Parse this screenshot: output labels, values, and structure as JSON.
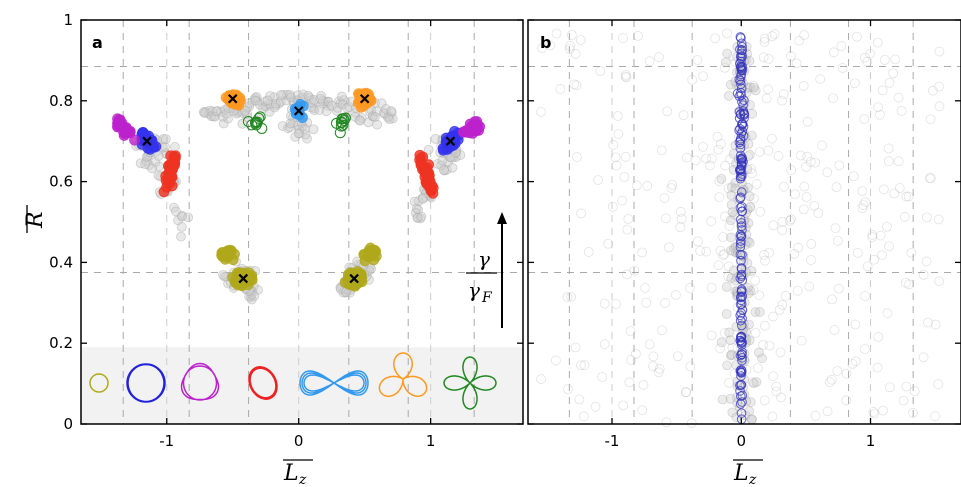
{
  "chart_data": [
    {
      "panel": "a",
      "type": "scatter",
      "ylabel": "R",
      "xlabel": "L",
      "xlabel_sub": "z",
      "xlim": [
        -1.65,
        1.7
      ],
      "ylim": [
        0,
        1
      ],
      "xticks": [
        -1,
        0,
        1
      ],
      "xtick_labels": [
        "-1",
        "0",
        "1"
      ],
      "yticks": [
        0,
        0.2,
        0.4,
        0.6,
        0.8,
        1
      ],
      "ytick_labels": [
        "0",
        "0.2",
        "0.4",
        "0.6",
        "0.8",
        "1"
      ],
      "grid_x": [
        -1.33,
        -0.83,
        -0.38,
        0.38,
        0.83,
        1.33
      ],
      "grid_y": [
        0.375,
        0.885
      ],
      "inset_band_ymax": 0.19,
      "arrow_label": {
        "numerator": "γ",
        "denominator": "γ",
        "denominator_sub": "F"
      },
      "clusters": [
        {
          "color": "#b0a81c",
          "center": [
            -0.42,
            0.36
          ],
          "n": 70
        },
        {
          "color": "#b0a81c",
          "center": [
            0.42,
            0.36
          ],
          "n": 70
        },
        {
          "color": "#b0a81c",
          "center": [
            -0.55,
            0.42
          ],
          "n": 20
        },
        {
          "color": "#b0a81c",
          "center": [
            0.55,
            0.42
          ],
          "n": 20
        },
        {
          "color": "#3333ee",
          "center": [
            -1.15,
            0.7
          ],
          "n": 35
        },
        {
          "color": "#3333ee",
          "center": [
            1.15,
            0.7
          ],
          "n": 35
        },
        {
          "color": "#bb22cc",
          "center": [
            -1.32,
            0.73
          ],
          "n": 25
        },
        {
          "color": "#bb22cc",
          "center": [
            1.32,
            0.73
          ],
          "n": 25
        },
        {
          "color": "#ee3322",
          "center": [
            -0.97,
            0.62
          ],
          "n": 40
        },
        {
          "color": "#ee3322",
          "center": [
            0.97,
            0.62
          ],
          "n": 40
        },
        {
          "color": "#3399ee",
          "center": [
            0.0,
            0.775
          ],
          "n": 12
        },
        {
          "color": "#ff9922",
          "center": [
            -0.5,
            0.805
          ],
          "n": 30
        },
        {
          "color": "#ff9922",
          "center": [
            0.5,
            0.805
          ],
          "n": 30
        },
        {
          "color": "#228822",
          "center": [
            -0.32,
            0.745
          ],
          "n": 10,
          "hollow": true
        },
        {
          "color": "#228822",
          "center": [
            0.32,
            0.745
          ],
          "n": 10,
          "hollow": true
        }
      ],
      "markers": [
        [
          -0.42,
          0.36
        ],
        [
          0.42,
          0.36
        ],
        [
          -1.15,
          0.7
        ],
        [
          1.15,
          0.7
        ],
        [
          -0.5,
          0.805
        ],
        [
          0.5,
          0.805
        ],
        [
          0.0,
          0.775
        ]
      ],
      "inset_shapes": [
        {
          "name": "small-circle",
          "color": "#b0a81c"
        },
        {
          "name": "circle",
          "color": "#2222dd"
        },
        {
          "name": "wobbly-circle",
          "color": "#bb22cc"
        },
        {
          "name": "ellipse-loop",
          "color": "#ee2222"
        },
        {
          "name": "figure-eight",
          "color": "#3399ee"
        },
        {
          "name": "three-lobe",
          "color": "#ff9922"
        },
        {
          "name": "four-petal",
          "color": "#228822"
        }
      ]
    },
    {
      "panel": "b",
      "type": "scatter",
      "xlabel": "L",
      "xlabel_sub": "z",
      "xlim": [
        -1.65,
        1.7
      ],
      "ylim": [
        0,
        1
      ],
      "xticks": [
        -1,
        0,
        1
      ],
      "xtick_labels": [
        "-1",
        "0",
        "1"
      ],
      "grid_x": [
        -1.33,
        -0.83,
        -0.38,
        0.38,
        0.83,
        1.33
      ],
      "grid_y": [
        0.375,
        0.885
      ],
      "column_color": "#3333bb",
      "column_x": 0,
      "column_y_range": [
        0.01,
        0.96
      ]
    }
  ],
  "panels": {
    "a_label": "a",
    "b_label": "b"
  }
}
